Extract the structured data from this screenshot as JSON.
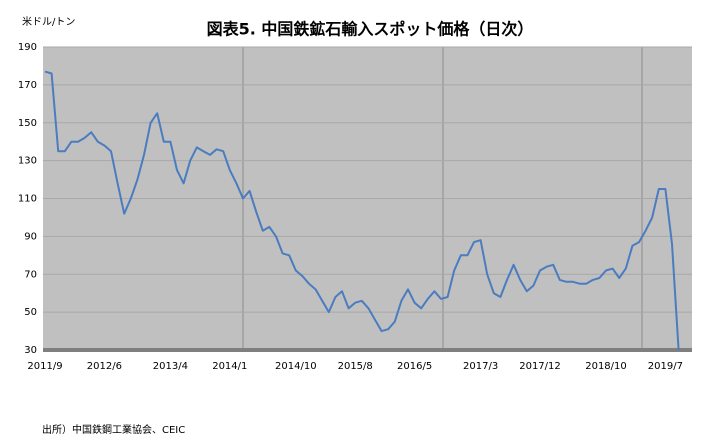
{
  "chart_data": {
    "type": "line",
    "title": "図表5. 中国鉄鉱石輸入スポット価格（日次）",
    "y_label": "米ドル/トン",
    "source": "出所）中国鉄鋼工業協会、CEIC",
    "categories": [
      "2011/9",
      null,
      null,
      null,
      null,
      null,
      null,
      null,
      null,
      "2012/6",
      null,
      null,
      null,
      null,
      null,
      null,
      null,
      null,
      null,
      "2013/4",
      null,
      null,
      null,
      null,
      null,
      null,
      null,
      null,
      "2014/1",
      null,
      null,
      null,
      null,
      null,
      null,
      null,
      null,
      null,
      "2014/10",
      null,
      null,
      null,
      null,
      null,
      null,
      null,
      null,
      "2015/8",
      null,
      null,
      null,
      null,
      null,
      null,
      null,
      null,
      "2016/5",
      null,
      null,
      null,
      null,
      null,
      null,
      null,
      null,
      null,
      "2017/3",
      null,
      null,
      null,
      null,
      null,
      null,
      null,
      null,
      "2017/12",
      null,
      null,
      null,
      null,
      null,
      null,
      null,
      null,
      null,
      "2018/10",
      null,
      null,
      null,
      null,
      null,
      null,
      null,
      null,
      "2019/7",
      null,
      null
    ],
    "values": [
      177,
      176,
      135,
      135,
      140,
      140,
      142,
      145,
      140,
      138,
      135,
      118,
      102,
      110,
      120,
      133,
      150,
      155,
      140,
      140,
      125,
      118,
      130,
      137,
      135,
      133,
      136,
      135,
      125,
      118,
      110,
      114,
      103,
      93,
      95,
      90,
      81,
      80,
      72,
      69,
      65,
      62,
      56,
      50,
      58,
      61,
      52,
      55,
      56,
      52,
      46,
      40,
      41,
      45,
      56,
      62,
      55,
      52,
      57,
      61,
      57,
      58,
      72,
      80,
      80,
      87,
      88,
      70,
      60,
      58,
      67,
      75,
      67,
      61,
      64,
      72,
      74,
      75,
      67,
      66,
      66,
      65,
      65,
      67,
      68,
      72,
      73,
      68,
      73,
      85,
      87,
      93,
      100,
      115,
      115,
      86,
      30
    ],
    "color": "#4a7cc0",
    "ylim": [
      30,
      190
    ],
    "yticks": [
      30,
      50,
      70,
      90,
      110,
      130,
      150,
      170,
      190
    ],
    "grid": true
  }
}
